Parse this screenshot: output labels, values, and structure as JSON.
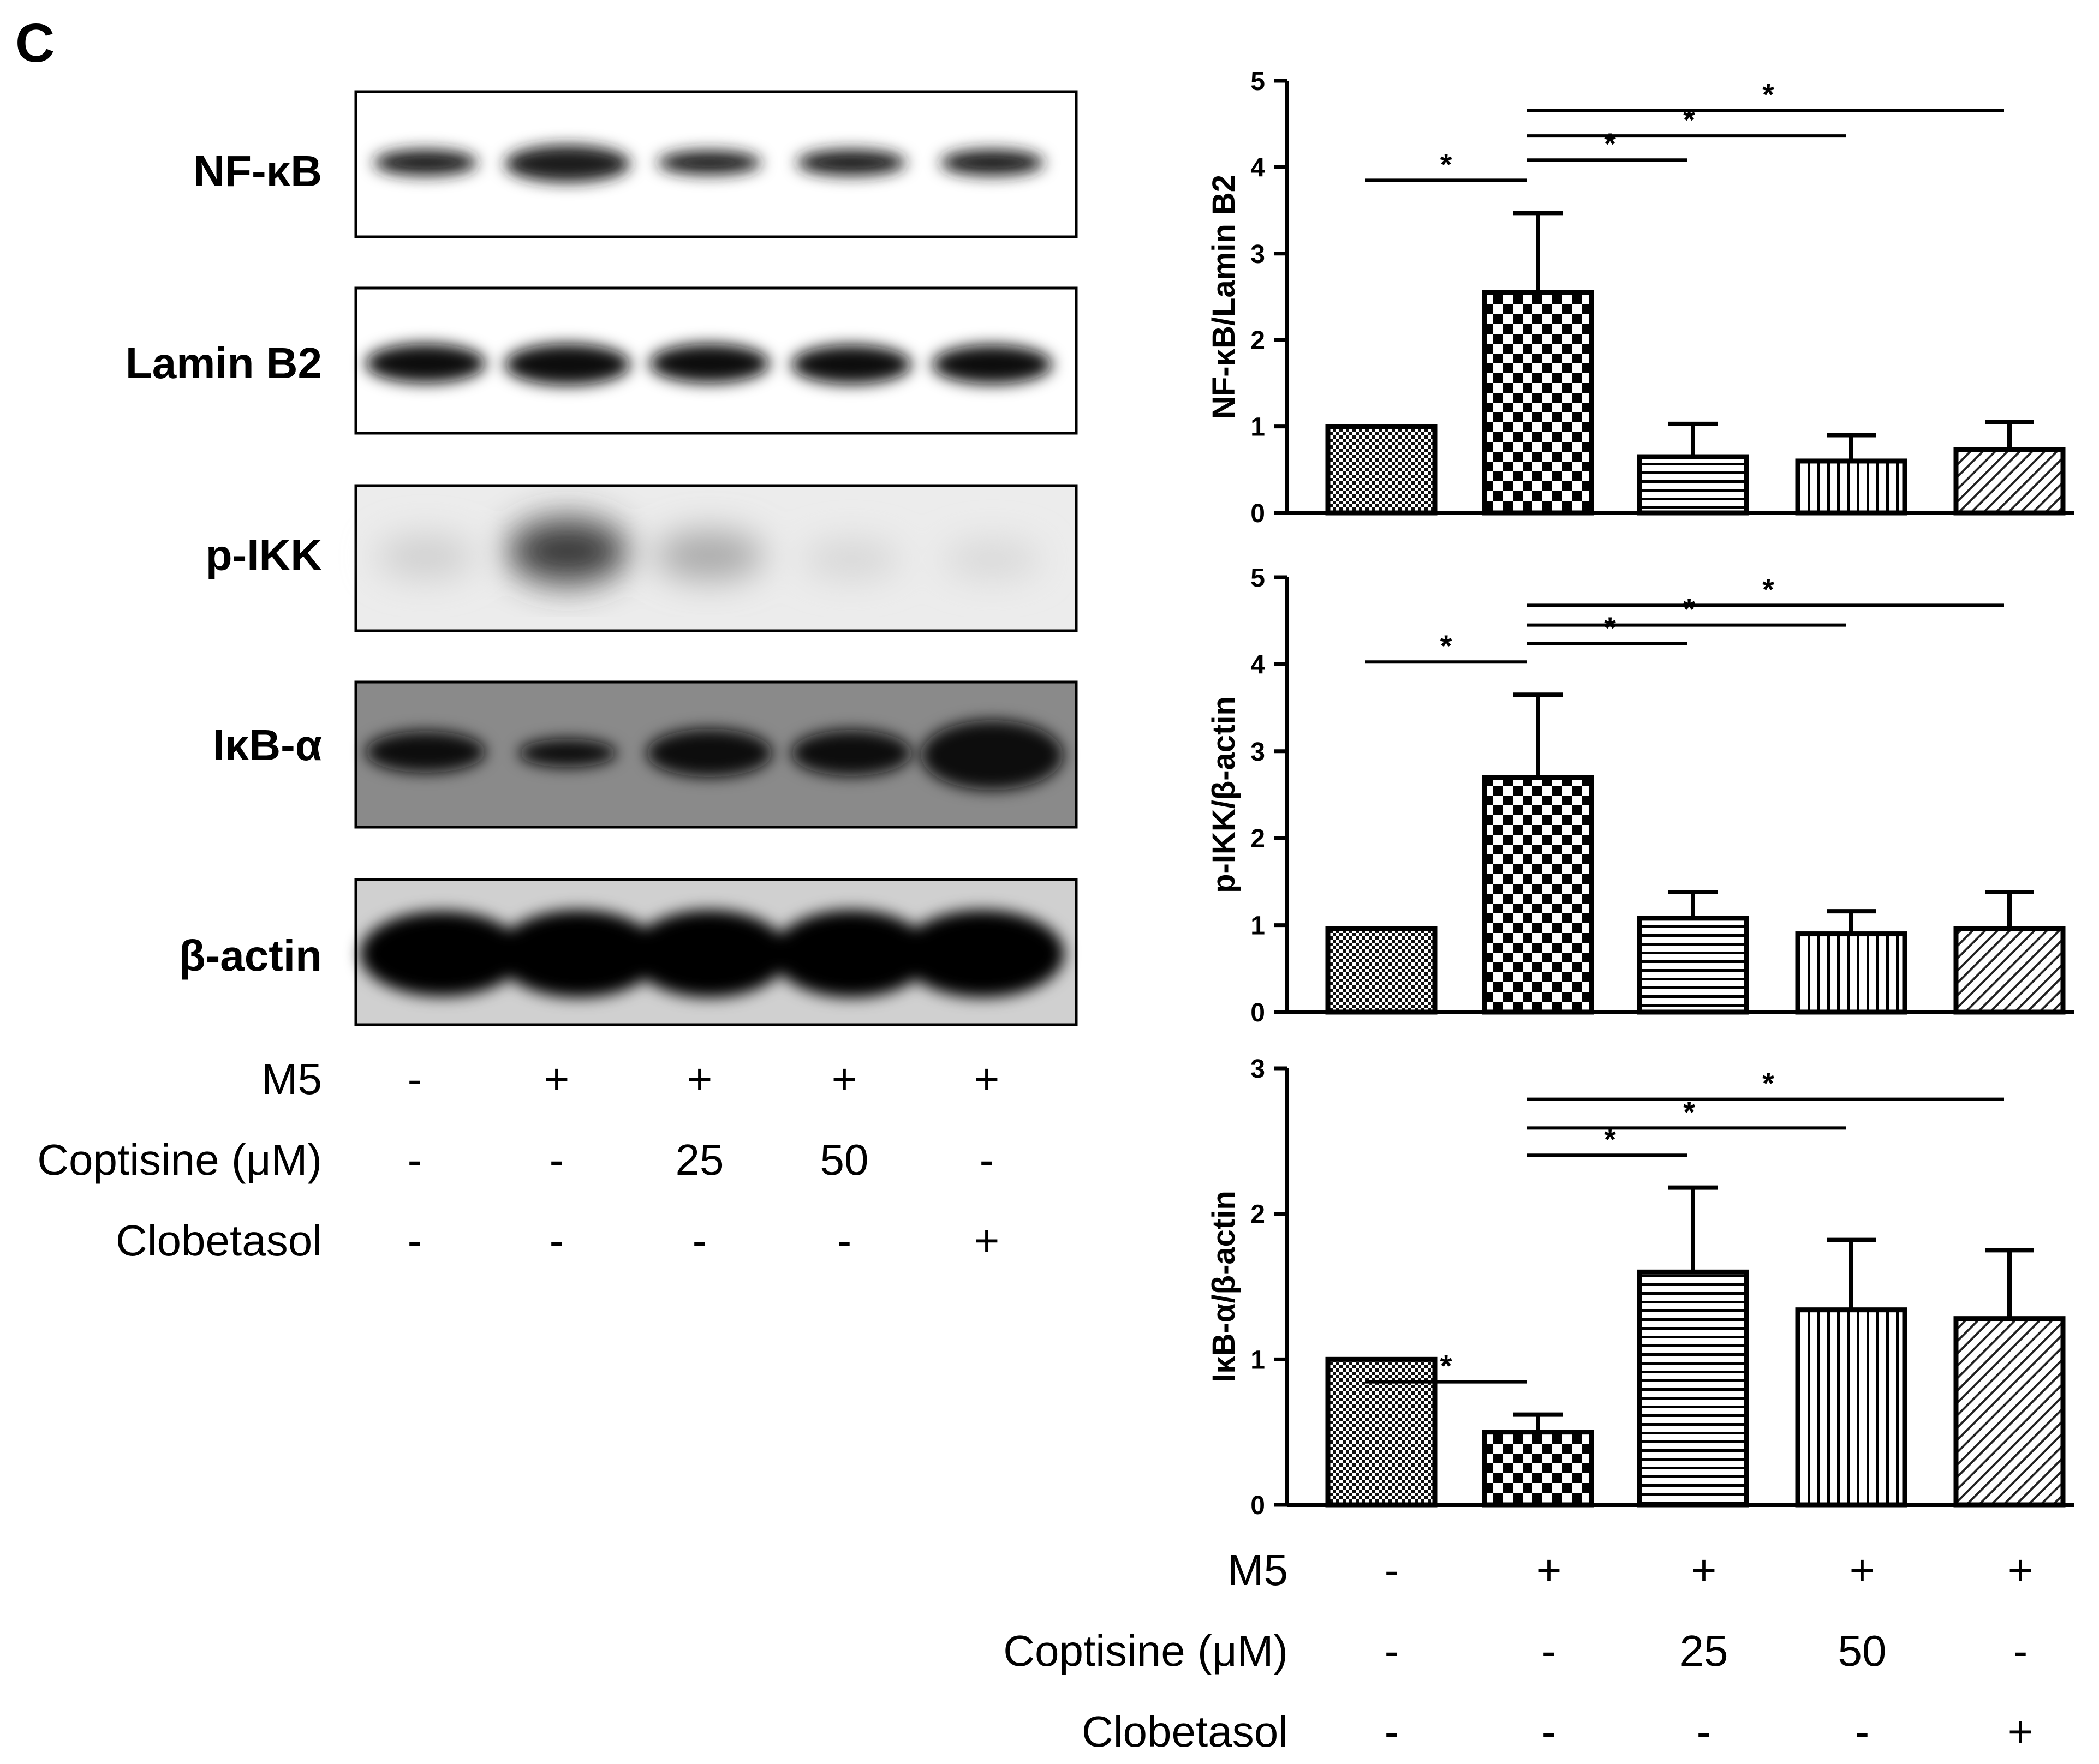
{
  "panel_letter": "C",
  "blot": {
    "labels": [
      "NF-κB",
      "Lamin B2",
      "p-IKK",
      "IκB-α",
      "β-actin"
    ]
  },
  "conditions": {
    "labels": [
      "M5",
      "Coptisine (μM)",
      "Clobetasol"
    ],
    "values": [
      [
        "-",
        "+",
        "+",
        "+",
        "+"
      ],
      [
        "-",
        "-",
        "25",
        "50",
        "-"
      ],
      [
        "-",
        "-",
        "-",
        "-",
        "+"
      ]
    ]
  },
  "chart_data": [
    {
      "type": "bar",
      "ylabel": "NF-κB/Lamin B2",
      "ylim": [
        0,
        5
      ],
      "yticks": [
        "0",
        "1",
        "2",
        "3",
        "4",
        "5"
      ],
      "values": [
        1.0,
        2.55,
        0.65,
        0.6,
        0.73
      ],
      "errors": [
        0,
        0.92,
        0.38,
        0.3,
        0.32
      ],
      "significance": [
        "*",
        "*",
        "*",
        "*"
      ]
    },
    {
      "type": "bar",
      "ylabel": "p-IKK/β-actin",
      "ylim": [
        0,
        5
      ],
      "yticks": [
        "0",
        "1",
        "2",
        "3",
        "4",
        "5"
      ],
      "values": [
        0.96,
        2.7,
        1.08,
        0.9,
        0.96
      ],
      "errors": [
        0,
        0.95,
        0.3,
        0.26,
        0.42
      ],
      "significance": [
        "*",
        "*",
        "*",
        "*"
      ]
    },
    {
      "type": "bar",
      "ylabel": "IκB-α/β-actin",
      "ylim": [
        0,
        3
      ],
      "yticks": [
        "0",
        "1",
        "2",
        "3"
      ],
      "values": [
        1.0,
        0.5,
        1.6,
        1.34,
        1.28
      ],
      "errors": [
        0,
        0.12,
        0.58,
        0.48,
        0.47
      ],
      "significance": [
        "*",
        "*",
        "*",
        "*"
      ]
    }
  ],
  "chart_conditions": {
    "labels": [
      "M5",
      "Coptisine (μM)",
      "Clobetasol"
    ],
    "values": [
      [
        "-",
        "+",
        "+",
        "+",
        "+"
      ],
      [
        "-",
        "-",
        "25",
        "50",
        "-"
      ],
      [
        "-",
        "-",
        "-",
        "-",
        "+"
      ]
    ]
  }
}
